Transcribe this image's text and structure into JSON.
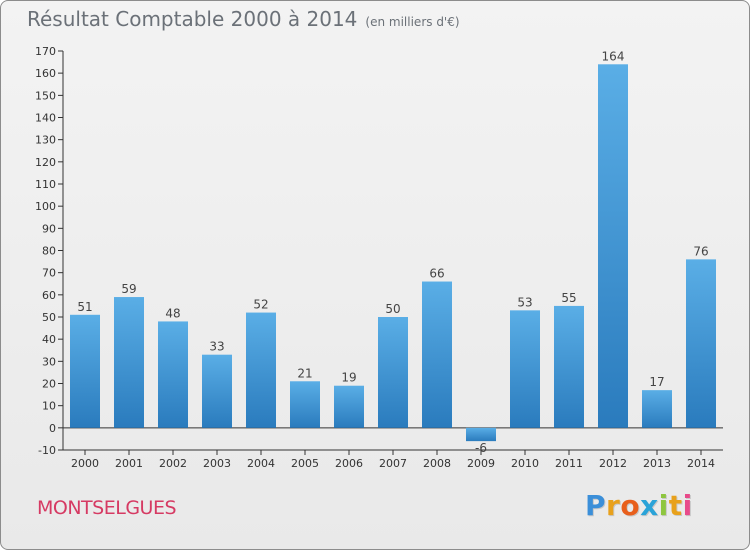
{
  "title": "Résultat Comptable 2000 à 2014",
  "subtitle": "(en milliers d'€)",
  "commune": "MONTSELGUES",
  "logo": {
    "letters": [
      "P",
      "r",
      "o",
      "x",
      "i",
      "t",
      "i"
    ],
    "colors": [
      "#3b8fd9",
      "#e8a11c",
      "#e85f1c",
      "#2aa3d8",
      "#8ec63f",
      "#e8a11c",
      "#e84a8a"
    ]
  },
  "chart_data": {
    "type": "bar",
    "categories": [
      "2000",
      "2001",
      "2002",
      "2003",
      "2004",
      "2005",
      "2006",
      "2007",
      "2008",
      "2009",
      "2010",
      "2011",
      "2012",
      "2013",
      "2014"
    ],
    "values": [
      51,
      59,
      48,
      33,
      52,
      21,
      19,
      50,
      66,
      -6,
      53,
      55,
      164,
      17,
      76
    ],
    "ylim": [
      -10,
      170
    ],
    "yticks": [
      -10,
      0,
      10,
      20,
      30,
      40,
      50,
      60,
      70,
      80,
      90,
      100,
      110,
      120,
      130,
      140,
      150,
      160,
      170
    ],
    "grid": false,
    "colors": {
      "bar_top": "#5aaee6",
      "bar_bottom": "#2a7bbd",
      "axis": "#333333"
    }
  }
}
